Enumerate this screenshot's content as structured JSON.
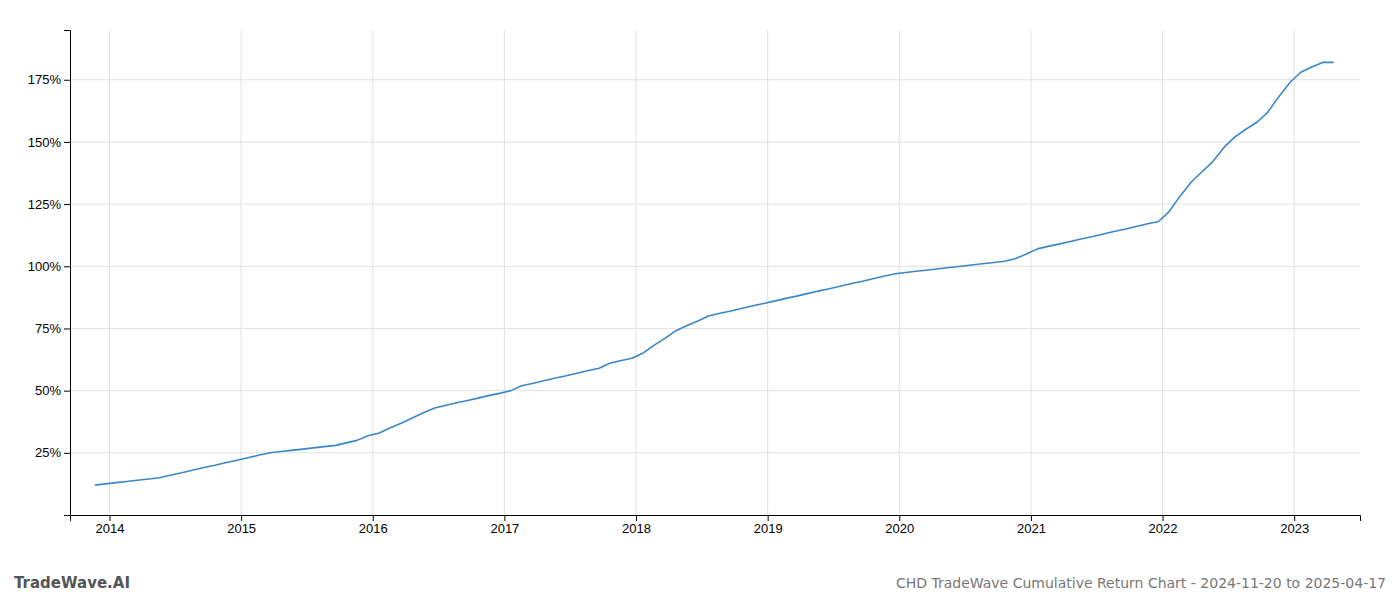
{
  "chart_data": {
    "type": "line",
    "title": "CHD TradeWave Cumulative Return Chart - 2024-11-20 to 2025-04-17",
    "annotations": [
      "TradeWave.AI"
    ],
    "color": "#3a87c8",
    "grid": true,
    "x": [
      2013.89,
      2013.97,
      2014.05,
      2014.13,
      2014.21,
      2014.3,
      2014.38,
      2014.46,
      2014.55,
      2014.63,
      2014.71,
      2014.8,
      2014.88,
      2014.97,
      2015.05,
      2015.13,
      2015.22,
      2015.3,
      2015.38,
      2015.47,
      2015.55,
      2015.63,
      2015.72,
      2015.8,
      2015.88,
      2015.97,
      2016.05,
      2016.13,
      2016.22,
      2016.3,
      2016.38,
      2016.47,
      2016.55,
      2016.63,
      2016.72,
      2016.8,
      2016.88,
      2016.97,
      2017.05,
      2017.13,
      2017.22,
      2017.3,
      2017.38,
      2017.47,
      2017.55,
      2017.63,
      2017.72,
      2017.8,
      2017.88,
      2017.97,
      2018.05,
      2018.13,
      2018.22,
      2018.3,
      2018.38,
      2018.47,
      2018.55,
      2018.63,
      2018.72,
      2018.8,
      2018.88,
      2018.97,
      2019.05,
      2019.13,
      2019.22,
      2019.3,
      2019.38,
      2019.47,
      2019.55,
      2019.63,
      2019.72,
      2019.8,
      2019.88,
      2019.97,
      2020.05,
      2020.13,
      2020.22,
      2020.3,
      2020.38,
      2020.47,
      2020.55,
      2020.63,
      2020.72,
      2020.8,
      2020.88,
      2020.97,
      2021.05,
      2021.13,
      2021.22,
      2021.3,
      2021.38,
      2021.47,
      2021.55,
      2021.63,
      2021.72,
      2021.8,
      2021.88,
      2021.97,
      2022.05,
      2022.13,
      2022.22,
      2022.3,
      2022.38,
      2022.47,
      2022.55,
      2022.63,
      2022.72,
      2022.8,
      2022.88,
      2022.97,
      2023.05,
      2023.13,
      2023.22,
      2023.3
    ],
    "values": [
      12,
      12.5,
      13,
      13.5,
      14,
      14.5,
      15,
      16,
      17,
      18,
      19,
      20,
      21,
      22,
      23,
      24,
      25,
      25.5,
      26,
      26.5,
      27,
      27.5,
      28,
      29,
      30,
      32,
      33,
      35,
      37,
      39,
      41,
      43,
      44,
      45,
      46,
      47,
      48,
      49,
      50,
      52,
      53,
      54,
      55,
      56,
      57,
      58,
      59,
      61,
      62,
      63,
      65,
      68,
      71,
      74,
      76,
      78,
      80,
      81,
      82,
      83,
      84,
      85,
      86,
      87,
      88,
      89,
      90,
      91,
      92,
      93,
      94,
      95,
      96,
      97,
      97.5,
      98,
      98.5,
      99,
      99.5,
      100,
      100.5,
      101,
      101.5,
      102,
      103,
      105,
      107,
      108,
      109,
      110,
      111,
      112,
      113,
      114,
      115,
      116,
      117,
      118,
      122,
      128,
      134,
      138,
      142,
      148,
      152,
      155,
      158,
      162,
      168,
      174,
      178,
      180,
      182,
      182
    ],
    "xlim": [
      2013.7,
      2023.5
    ],
    "xticks": [
      2014,
      2015,
      2016,
      2017,
      2018,
      2019,
      2020,
      2021,
      2022,
      2023
    ],
    "ylim": [
      0,
      195
    ],
    "yticks": [
      {
        "value": 25,
        "label": "25%"
      },
      {
        "value": 50,
        "label": "50%"
      },
      {
        "value": 75,
        "label": "75%"
      },
      {
        "value": 100,
        "label": "100%"
      },
      {
        "value": 125,
        "label": "125%"
      },
      {
        "value": 150,
        "label": "150%"
      },
      {
        "value": 175,
        "label": "175%"
      }
    ]
  }
}
